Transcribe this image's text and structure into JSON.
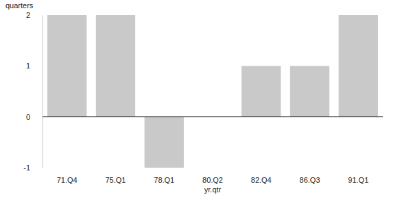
{
  "chart_data": {
    "type": "bar",
    "y_label": "quarters",
    "x_label": "yr.qtr",
    "categories": [
      "71.Q4",
      "75.Q1",
      "78.Q1",
      "80.Q2",
      "82.Q4",
      "86.Q3",
      "91.Q1"
    ],
    "values": [
      2,
      2,
      -1,
      0,
      1,
      1,
      2
    ],
    "color": "#c9c9c9",
    "ylim": [
      -1,
      2
    ],
    "yticks": [
      2,
      1,
      0,
      -1
    ],
    "grid": false
  }
}
